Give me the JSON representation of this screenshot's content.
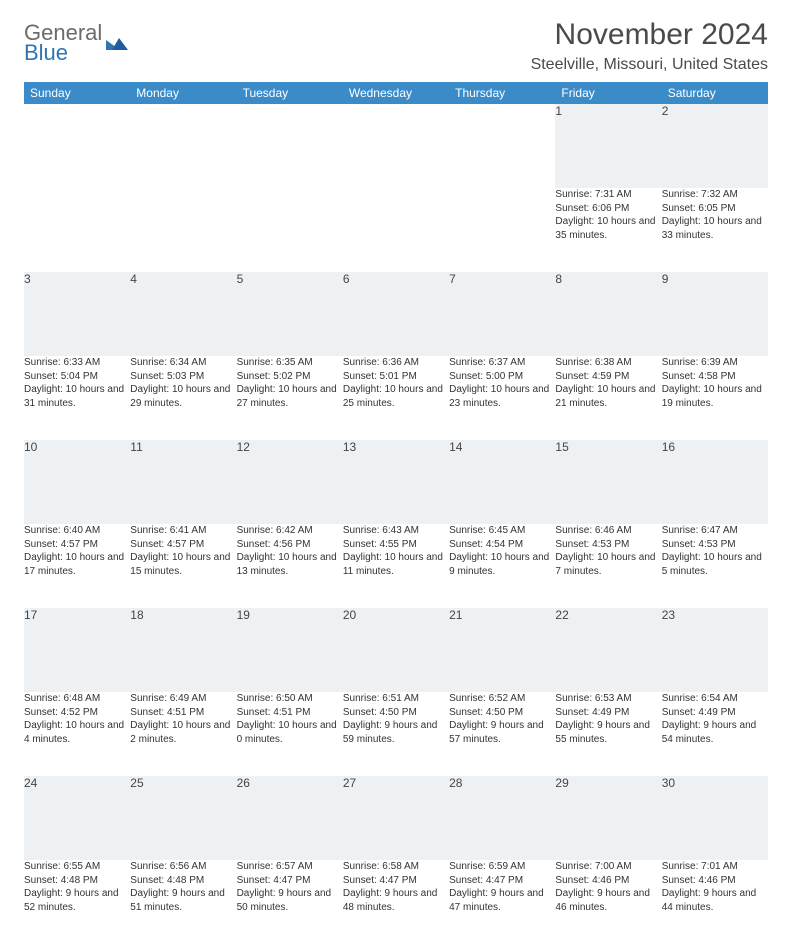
{
  "brand": {
    "line1": "General",
    "line2": "Blue",
    "color_general": "#6b6b6b",
    "color_blue": "#2e75b6"
  },
  "title": "November 2024",
  "location": "Steelville, Missouri, United States",
  "header_bg": "#3b8bc9",
  "header_fg": "#ffffff",
  "daynum_bg": "#eef1f4",
  "rule_color": "#5a7aa5",
  "body_fontsize": 10,
  "columns": [
    "Sunday",
    "Monday",
    "Tuesday",
    "Wednesday",
    "Thursday",
    "Friday",
    "Saturday"
  ],
  "weeks": [
    [
      null,
      null,
      null,
      null,
      null,
      {
        "n": "1",
        "sr": "Sunrise: 7:31 AM",
        "ss": "Sunset: 6:06 PM",
        "dl": "Daylight: 10 hours and 35 minutes."
      },
      {
        "n": "2",
        "sr": "Sunrise: 7:32 AM",
        "ss": "Sunset: 6:05 PM",
        "dl": "Daylight: 10 hours and 33 minutes."
      }
    ],
    [
      {
        "n": "3",
        "sr": "Sunrise: 6:33 AM",
        "ss": "Sunset: 5:04 PM",
        "dl": "Daylight: 10 hours and 31 minutes."
      },
      {
        "n": "4",
        "sr": "Sunrise: 6:34 AM",
        "ss": "Sunset: 5:03 PM",
        "dl": "Daylight: 10 hours and 29 minutes."
      },
      {
        "n": "5",
        "sr": "Sunrise: 6:35 AM",
        "ss": "Sunset: 5:02 PM",
        "dl": "Daylight: 10 hours and 27 minutes."
      },
      {
        "n": "6",
        "sr": "Sunrise: 6:36 AM",
        "ss": "Sunset: 5:01 PM",
        "dl": "Daylight: 10 hours and 25 minutes."
      },
      {
        "n": "7",
        "sr": "Sunrise: 6:37 AM",
        "ss": "Sunset: 5:00 PM",
        "dl": "Daylight: 10 hours and 23 minutes."
      },
      {
        "n": "8",
        "sr": "Sunrise: 6:38 AM",
        "ss": "Sunset: 4:59 PM",
        "dl": "Daylight: 10 hours and 21 minutes."
      },
      {
        "n": "9",
        "sr": "Sunrise: 6:39 AM",
        "ss": "Sunset: 4:58 PM",
        "dl": "Daylight: 10 hours and 19 minutes."
      }
    ],
    [
      {
        "n": "10",
        "sr": "Sunrise: 6:40 AM",
        "ss": "Sunset: 4:57 PM",
        "dl": "Daylight: 10 hours and 17 minutes."
      },
      {
        "n": "11",
        "sr": "Sunrise: 6:41 AM",
        "ss": "Sunset: 4:57 PM",
        "dl": "Daylight: 10 hours and 15 minutes."
      },
      {
        "n": "12",
        "sr": "Sunrise: 6:42 AM",
        "ss": "Sunset: 4:56 PM",
        "dl": "Daylight: 10 hours and 13 minutes."
      },
      {
        "n": "13",
        "sr": "Sunrise: 6:43 AM",
        "ss": "Sunset: 4:55 PM",
        "dl": "Daylight: 10 hours and 11 minutes."
      },
      {
        "n": "14",
        "sr": "Sunrise: 6:45 AM",
        "ss": "Sunset: 4:54 PM",
        "dl": "Daylight: 10 hours and 9 minutes."
      },
      {
        "n": "15",
        "sr": "Sunrise: 6:46 AM",
        "ss": "Sunset: 4:53 PM",
        "dl": "Daylight: 10 hours and 7 minutes."
      },
      {
        "n": "16",
        "sr": "Sunrise: 6:47 AM",
        "ss": "Sunset: 4:53 PM",
        "dl": "Daylight: 10 hours and 5 minutes."
      }
    ],
    [
      {
        "n": "17",
        "sr": "Sunrise: 6:48 AM",
        "ss": "Sunset: 4:52 PM",
        "dl": "Daylight: 10 hours and 4 minutes."
      },
      {
        "n": "18",
        "sr": "Sunrise: 6:49 AM",
        "ss": "Sunset: 4:51 PM",
        "dl": "Daylight: 10 hours and 2 minutes."
      },
      {
        "n": "19",
        "sr": "Sunrise: 6:50 AM",
        "ss": "Sunset: 4:51 PM",
        "dl": "Daylight: 10 hours and 0 minutes."
      },
      {
        "n": "20",
        "sr": "Sunrise: 6:51 AM",
        "ss": "Sunset: 4:50 PM",
        "dl": "Daylight: 9 hours and 59 minutes."
      },
      {
        "n": "21",
        "sr": "Sunrise: 6:52 AM",
        "ss": "Sunset: 4:50 PM",
        "dl": "Daylight: 9 hours and 57 minutes."
      },
      {
        "n": "22",
        "sr": "Sunrise: 6:53 AM",
        "ss": "Sunset: 4:49 PM",
        "dl": "Daylight: 9 hours and 55 minutes."
      },
      {
        "n": "23",
        "sr": "Sunrise: 6:54 AM",
        "ss": "Sunset: 4:49 PM",
        "dl": "Daylight: 9 hours and 54 minutes."
      }
    ],
    [
      {
        "n": "24",
        "sr": "Sunrise: 6:55 AM",
        "ss": "Sunset: 4:48 PM",
        "dl": "Daylight: 9 hours and 52 minutes."
      },
      {
        "n": "25",
        "sr": "Sunrise: 6:56 AM",
        "ss": "Sunset: 4:48 PM",
        "dl": "Daylight: 9 hours and 51 minutes."
      },
      {
        "n": "26",
        "sr": "Sunrise: 6:57 AM",
        "ss": "Sunset: 4:47 PM",
        "dl": "Daylight: 9 hours and 50 minutes."
      },
      {
        "n": "27",
        "sr": "Sunrise: 6:58 AM",
        "ss": "Sunset: 4:47 PM",
        "dl": "Daylight: 9 hours and 48 minutes."
      },
      {
        "n": "28",
        "sr": "Sunrise: 6:59 AM",
        "ss": "Sunset: 4:47 PM",
        "dl": "Daylight: 9 hours and 47 minutes."
      },
      {
        "n": "29",
        "sr": "Sunrise: 7:00 AM",
        "ss": "Sunset: 4:46 PM",
        "dl": "Daylight: 9 hours and 46 minutes."
      },
      {
        "n": "30",
        "sr": "Sunrise: 7:01 AM",
        "ss": "Sunset: 4:46 PM",
        "dl": "Daylight: 9 hours and 44 minutes."
      }
    ]
  ]
}
